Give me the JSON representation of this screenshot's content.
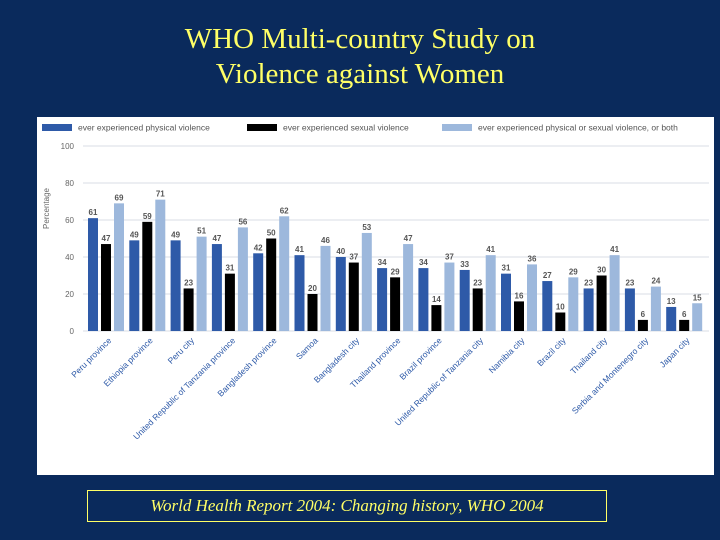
{
  "slide": {
    "title_line1": "WHO Multi-country Study on",
    "title_line2": "Violence against Women",
    "caption": "World Health Report 2004: Changing history, WHO 2004"
  },
  "chart_data": {
    "type": "bar",
    "ylabel": "Percentage",
    "ylim": [
      0,
      100
    ],
    "yticks": [
      0,
      20,
      40,
      60,
      80,
      100
    ],
    "grid": true,
    "legend_position": "top",
    "categories": [
      "Peru province",
      "Ethiopia province",
      "Peru city",
      "United Republic of Tanzania province",
      "Bangladesh province",
      "Samoa",
      "Bangladesh city",
      "Thailand province",
      "Brazil province",
      "United Republic of Tanzania city",
      "Namibia city",
      "Brazil city",
      "Thailand city",
      "Serbia and Montenegro city",
      "Japan city"
    ],
    "series": [
      {
        "name": "ever experienced physical violence",
        "color": "#2e5aa8",
        "values": [
          61,
          49,
          49,
          47,
          42,
          41,
          40,
          34,
          34,
          33,
          31,
          27,
          23,
          23,
          13
        ]
      },
      {
        "name": "ever experienced sexual violence",
        "color": "#000000",
        "values": [
          47,
          59,
          23,
          31,
          50,
          20,
          37,
          29,
          14,
          23,
          16,
          10,
          30,
          6,
          6
        ]
      },
      {
        "name": "ever experienced physical or sexual violence, or both",
        "color": "#9db8dc",
        "values": [
          69,
          71,
          51,
          56,
          62,
          46,
          53,
          47,
          37,
          41,
          36,
          29,
          41,
          24,
          15
        ]
      }
    ]
  }
}
